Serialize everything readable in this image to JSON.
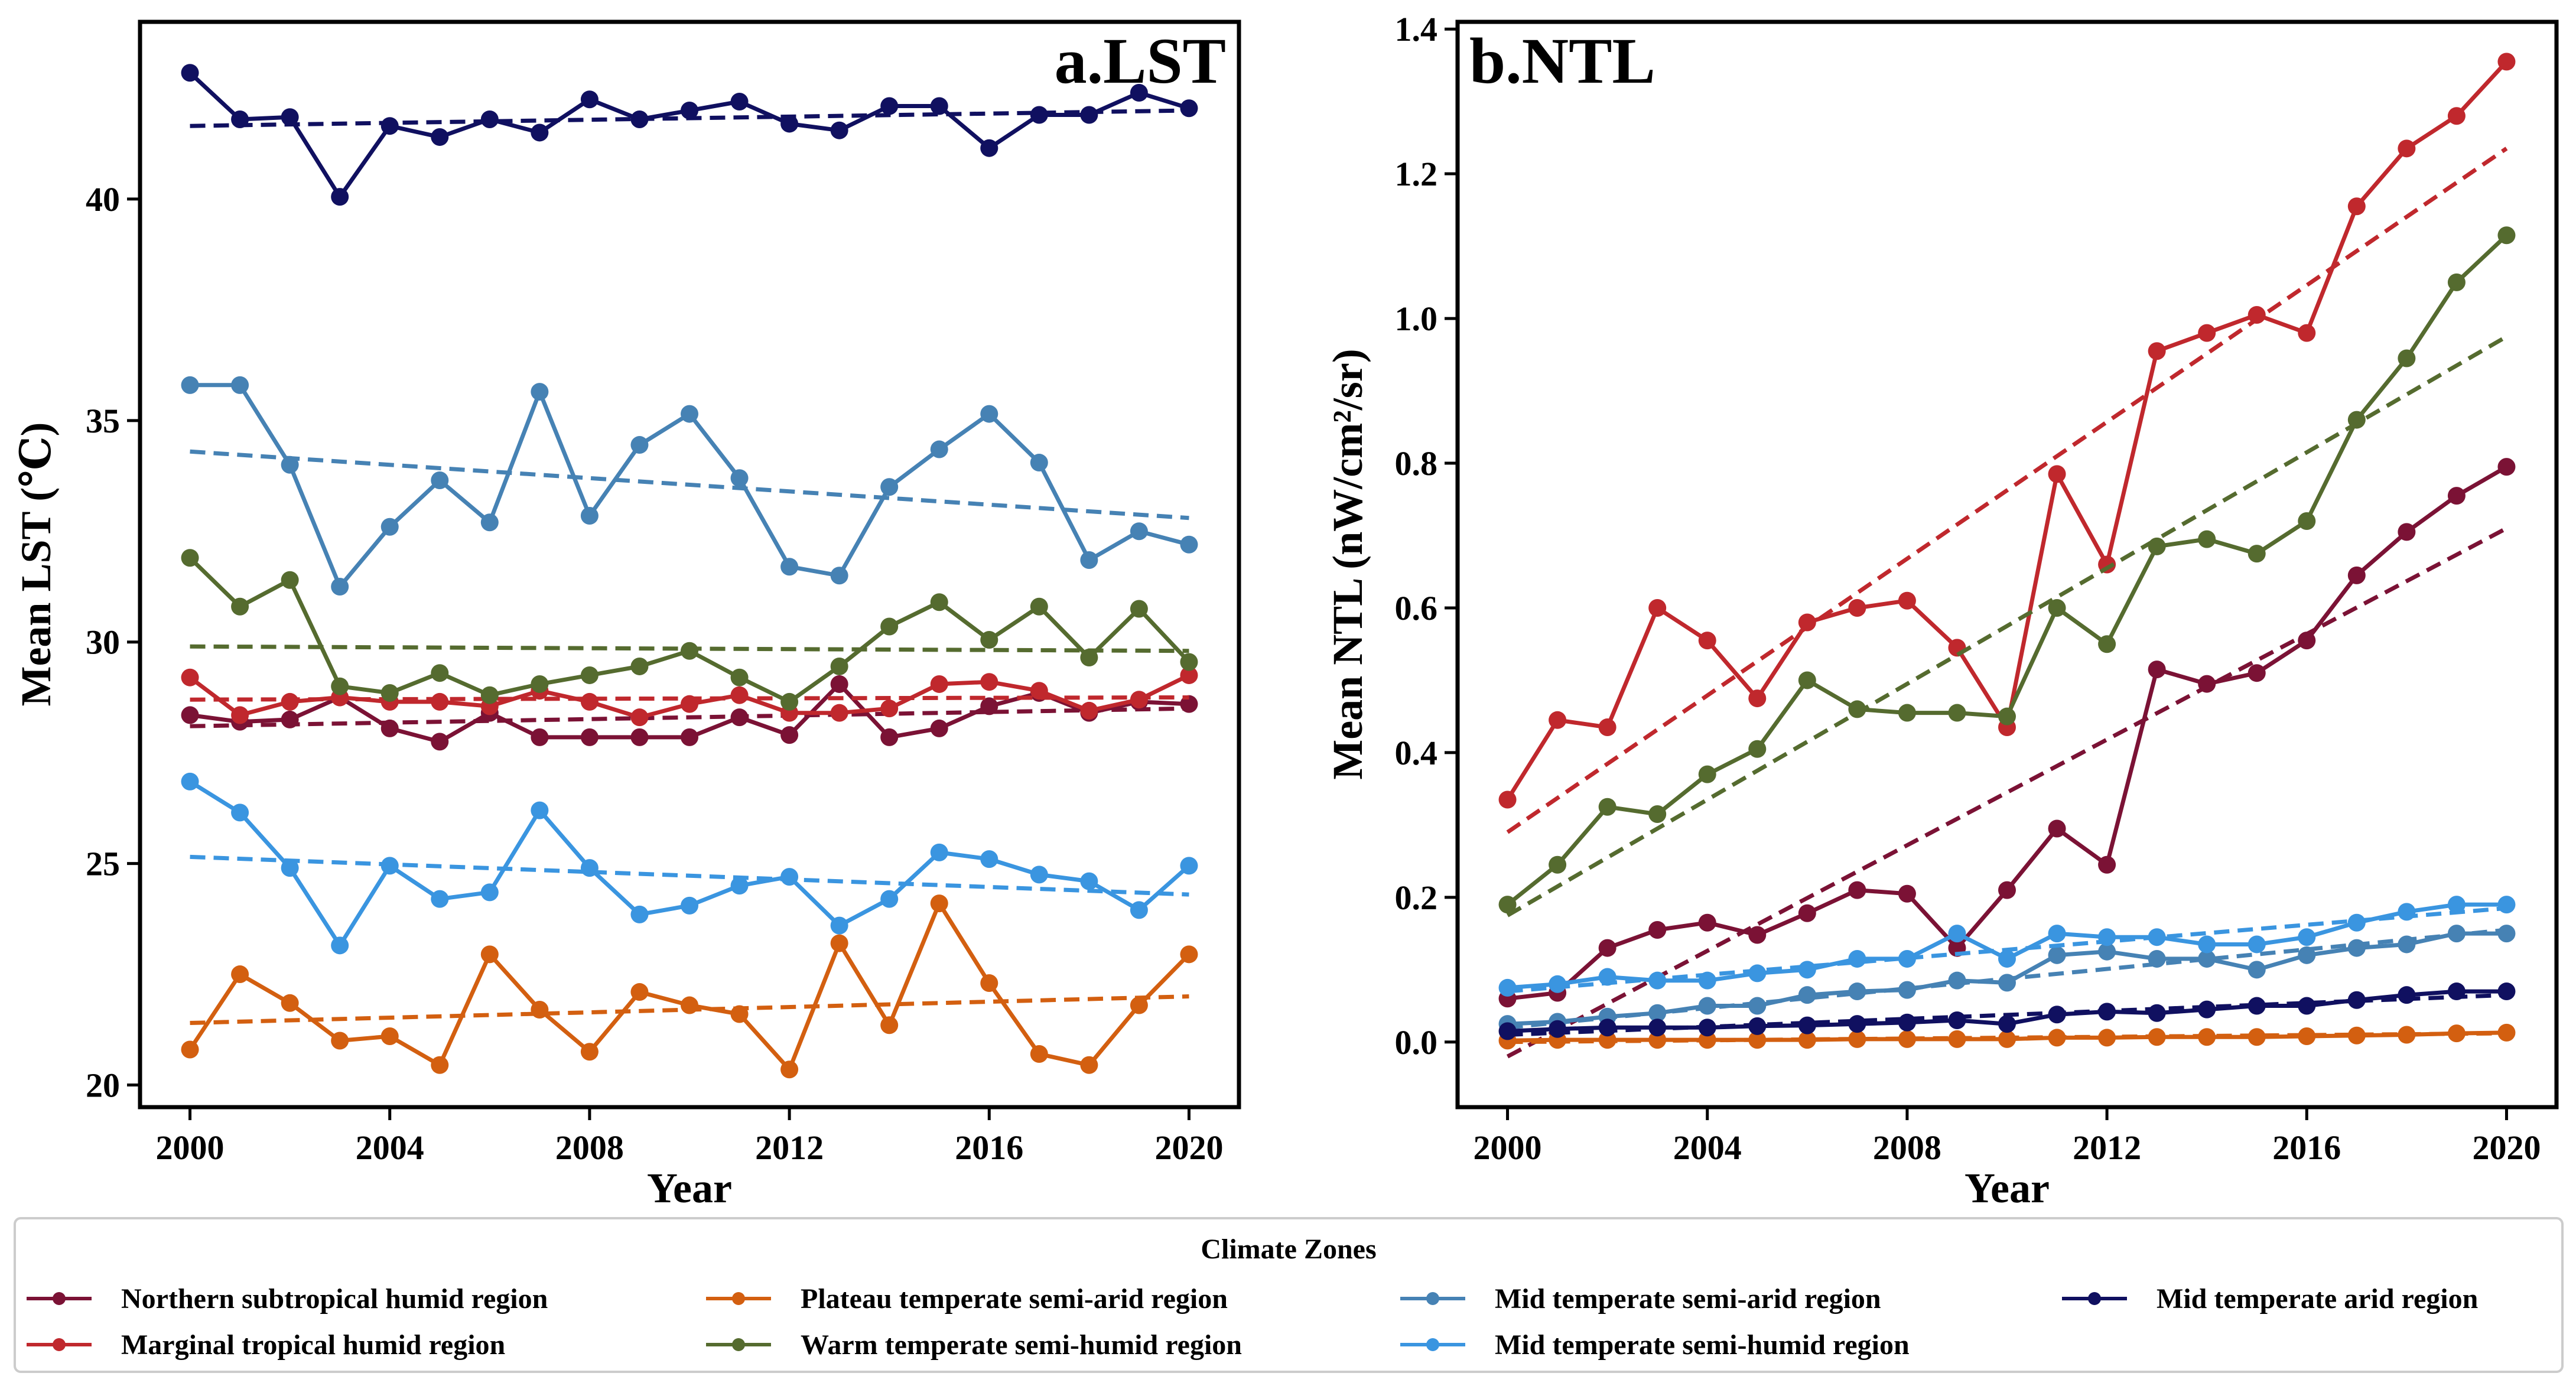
{
  "chart_data": [
    {
      "type": "line",
      "title": "a.LST",
      "xlabel": "Year",
      "ylabel": "Mean LST (℃)",
      "xlim": [
        1999,
        2021
      ],
      "ylim": [
        19.5,
        44
      ],
      "xticks": [
        2000,
        2004,
        2008,
        2012,
        2016,
        2020
      ],
      "yticks": [
        20,
        25,
        30,
        35,
        40
      ],
      "x": [
        2000,
        2001,
        2002,
        2003,
        2004,
        2005,
        2006,
        2007,
        2008,
        2009,
        2010,
        2011,
        2012,
        2013,
        2014,
        2015,
        2016,
        2017,
        2018,
        2019,
        2020
      ],
      "series": [
        {
          "name": "Northern subtropical humid region",
          "values": [
            28.35,
            28.2,
            28.25,
            28.75,
            28.05,
            27.75,
            28.4,
            27.85,
            27.85,
            27.85,
            27.85,
            28.3,
            27.9,
            29.05,
            27.85,
            28.05,
            28.55,
            28.85,
            28.4,
            28.65,
            28.6
          ],
          "trend": [
            28.1,
            28.5
          ]
        },
        {
          "name": "Marginal tropical humid region",
          "values": [
            29.2,
            28.35,
            28.65,
            28.75,
            28.65,
            28.65,
            28.55,
            28.9,
            28.65,
            28.3,
            28.6,
            28.8,
            28.4,
            28.4,
            28.5,
            29.05,
            29.1,
            28.9,
            28.45,
            28.7,
            29.25
          ],
          "trend": [
            28.7,
            28.75
          ]
        },
        {
          "name": "Plateau temperate semi-arid region",
          "values": [
            20.8,
            22.5,
            21.85,
            21.0,
            21.1,
            20.45,
            22.95,
            21.7,
            20.75,
            22.1,
            21.8,
            21.6,
            20.35,
            23.2,
            21.35,
            24.1,
            22.3,
            20.7,
            20.45,
            21.8,
            22.95
          ],
          "trend": [
            21.4,
            22.0
          ]
        },
        {
          "name": "Warm temperate semi-humid region",
          "values": [
            31.9,
            30.8,
            31.4,
            29.0,
            28.85,
            29.3,
            28.8,
            29.05,
            29.25,
            29.45,
            29.8,
            29.2,
            28.65,
            29.45,
            30.35,
            30.9,
            30.05,
            30.8,
            29.65,
            30.75,
            29.55
          ],
          "trend": [
            29.9,
            29.8
          ]
        },
        {
          "name": "Mid temperate semi-arid region",
          "values": [
            35.8,
            35.8,
            34.0,
            31.25,
            32.6,
            33.65,
            32.7,
            35.65,
            32.85,
            34.45,
            35.15,
            33.7,
            31.7,
            31.5,
            33.5,
            34.35,
            35.15,
            34.05,
            31.85,
            32.5,
            32.2
          ],
          "trend": [
            34.3,
            32.8
          ]
        },
        {
          "name": "Mid temperate semi-humid region",
          "values": [
            26.85,
            26.15,
            24.9,
            23.15,
            24.95,
            24.2,
            24.35,
            26.2,
            24.9,
            23.85,
            24.05,
            24.5,
            24.7,
            23.6,
            24.2,
            25.25,
            25.1,
            24.75,
            24.6,
            23.95,
            24.95
          ],
          "trend": [
            25.15,
            24.3
          ]
        },
        {
          "name": "Mid temperate arid region",
          "values": [
            42.85,
            41.8,
            41.85,
            40.05,
            41.65,
            41.4,
            41.8,
            41.5,
            42.25,
            41.8,
            42.0,
            42.2,
            41.7,
            41.55,
            42.1,
            42.1,
            41.15,
            41.9,
            41.9,
            42.4,
            42.05
          ],
          "trend": [
            41.65,
            42.0
          ]
        }
      ]
    },
    {
      "type": "line",
      "title": "b.NTL",
      "xlabel": "Year",
      "ylabel": "Mean NTL (nW/cm²/sr)",
      "xlim": [
        1999,
        2021
      ],
      "ylim": [
        -0.09,
        1.41
      ],
      "xticks": [
        2000,
        2004,
        2008,
        2012,
        2016,
        2020
      ],
      "yticks": [
        "0.0",
        "0.2",
        "0.4",
        "0.6",
        "0.8",
        "1.0",
        "1.2",
        "1.4"
      ],
      "x": [
        2000,
        2001,
        2002,
        2003,
        2004,
        2005,
        2006,
        2007,
        2008,
        2009,
        2010,
        2011,
        2012,
        2013,
        2014,
        2015,
        2016,
        2017,
        2018,
        2019,
        2020
      ],
      "series": [
        {
          "name": "Northern subtropical humid region",
          "values": [
            0.06,
            0.068,
            0.13,
            0.155,
            0.165,
            0.148,
            0.178,
            0.21,
            0.205,
            0.13,
            0.21,
            0.295,
            0.245,
            0.515,
            0.495,
            0.51,
            0.555,
            0.645,
            0.705,
            0.755,
            0.795
          ],
          "trend": [
            -0.02,
            0.71
          ]
        },
        {
          "name": "Marginal tropical humid region",
          "values": [
            0.335,
            0.445,
            0.435,
            0.6,
            0.555,
            0.475,
            0.58,
            0.6,
            0.61,
            0.545,
            0.435,
            0.785,
            0.66,
            0.955,
            0.98,
            1.005,
            0.98,
            1.155,
            1.235,
            1.28,
            1.355
          ],
          "trend": [
            0.29,
            1.235
          ]
        },
        {
          "name": "Plateau temperate semi-arid region",
          "values": [
            0.002,
            0.003,
            0.003,
            0.003,
            0.003,
            0.003,
            0.003,
            0.004,
            0.004,
            0.004,
            0.004,
            0.006,
            0.006,
            0.007,
            0.007,
            0.007,
            0.008,
            0.009,
            0.01,
            0.012,
            0.013
          ],
          "trend": [
            0.0,
            0.012
          ]
        },
        {
          "name": "Warm temperate semi-humid region",
          "values": [
            0.19,
            0.245,
            0.325,
            0.315,
            0.37,
            0.405,
            0.5,
            0.46,
            0.455,
            0.455,
            0.45,
            0.6,
            0.55,
            0.685,
            0.695,
            0.675,
            0.72,
            0.86,
            0.945,
            1.05,
            1.115
          ],
          "trend": [
            0.175,
            0.975
          ]
        },
        {
          "name": "Mid temperate semi-arid region",
          "values": [
            0.025,
            0.028,
            0.035,
            0.04,
            0.05,
            0.05,
            0.065,
            0.07,
            0.072,
            0.085,
            0.082,
            0.12,
            0.125,
            0.115,
            0.115,
            0.1,
            0.12,
            0.13,
            0.135,
            0.15,
            0.15
          ],
          "trend": [
            0.02,
            0.155
          ]
        },
        {
          "name": "Mid temperate semi-humid region",
          "values": [
            0.075,
            0.08,
            0.09,
            0.085,
            0.085,
            0.095,
            0.1,
            0.115,
            0.115,
            0.15,
            0.115,
            0.15,
            0.145,
            0.145,
            0.135,
            0.135,
            0.145,
            0.165,
            0.18,
            0.19,
            0.19
          ],
          "trend": [
            0.07,
            0.185
          ]
        },
        {
          "name": "Mid temperate arid region",
          "values": [
            0.015,
            0.018,
            0.02,
            0.02,
            0.02,
            0.022,
            0.023,
            0.025,
            0.027,
            0.03,
            0.025,
            0.038,
            0.042,
            0.04,
            0.045,
            0.05,
            0.05,
            0.058,
            0.065,
            0.07,
            0.07
          ],
          "trend": [
            0.01,
            0.065
          ]
        }
      ]
    }
  ],
  "legend": {
    "title": "Climate Zones",
    "entries": [
      {
        "name": "Northern subtropical humid region",
        "color": "#7b1235"
      },
      {
        "name": "Marginal tropical humid region",
        "color": "#c0282d"
      },
      {
        "name": "Plateau temperate semi-arid region",
        "color": "#d35f10"
      },
      {
        "name": "Warm temperate semi-humid region",
        "color": "#556b2f"
      },
      {
        "name": "Mid temperate semi-arid region",
        "color": "#4682b4"
      },
      {
        "name": "Mid temperate semi-humid region",
        "color": "#3a95e0"
      },
      {
        "name": "Mid temperate arid region",
        "color": "#101060"
      }
    ]
  }
}
